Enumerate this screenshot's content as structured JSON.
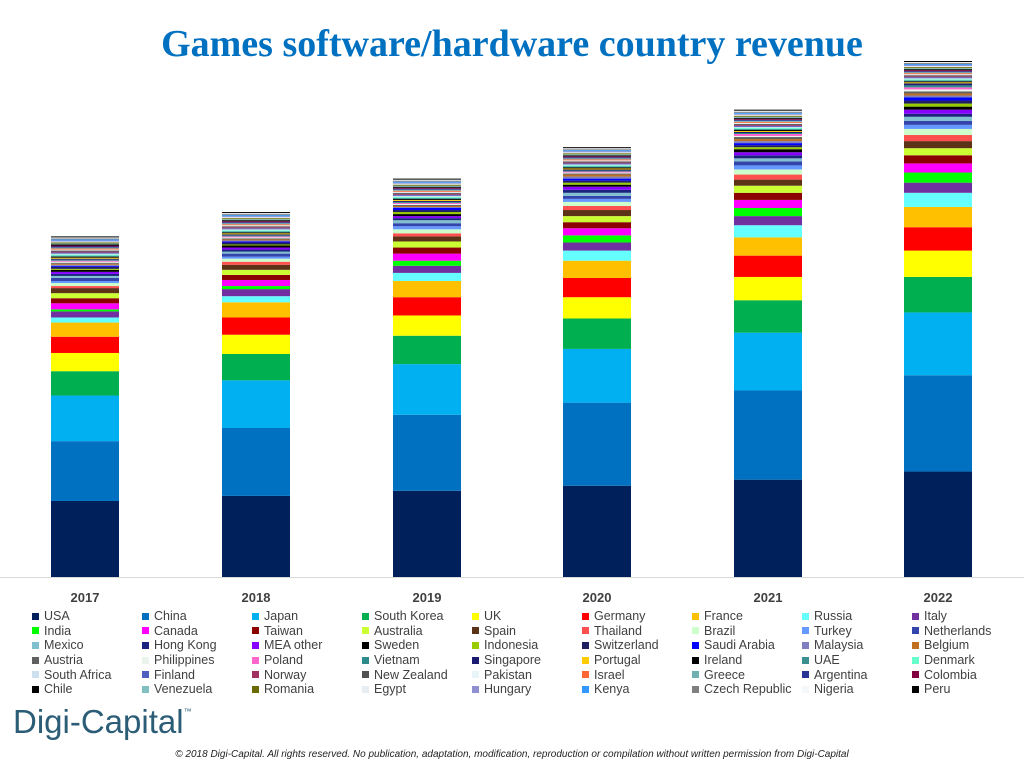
{
  "chart_data": {
    "type": "bar",
    "stacked": true,
    "title": "Games software/hardware country revenue",
    "xlabel": "",
    "ylabel": "",
    "units": "relative revenue (no axis shown)",
    "ylim": [
      0,
      510
    ],
    "categories": [
      "2017",
      "2018",
      "2019",
      "2020",
      "2021",
      "2022"
    ],
    "legend_position": "bottom",
    "series": [
      {
        "name": "USA",
        "color": "#00205b",
        "values": [
          75,
          80,
          85,
          90,
          96,
          104
        ]
      },
      {
        "name": "China",
        "color": "#0070c0",
        "values": [
          59,
          67,
          75,
          82,
          88,
          95
        ]
      },
      {
        "name": "Japan",
        "color": "#00b0f0",
        "values": [
          45,
          47,
          50,
          53,
          57,
          62
        ]
      },
      {
        "name": "South Korea",
        "color": "#00b050",
        "values": [
          24,
          26,
          28,
          30,
          32,
          35
        ]
      },
      {
        "name": "UK",
        "color": "#ffff00",
        "values": [
          18,
          19,
          20,
          21,
          23,
          26
        ]
      },
      {
        "name": "Germany",
        "color": "#ff0000",
        "values": [
          16,
          17,
          18,
          19,
          21,
          23
        ]
      },
      {
        "name": "France",
        "color": "#ffc000",
        "values": [
          14,
          15,
          16,
          17,
          18,
          20
        ]
      },
      {
        "name": "Russia",
        "color": "#66ffff",
        "values": [
          5,
          6,
          8,
          10,
          12,
          14
        ]
      },
      {
        "name": "Italy",
        "color": "#7030a0",
        "values": [
          6,
          7,
          7,
          8,
          9,
          10
        ]
      },
      {
        "name": "India",
        "color": "#00ff00",
        "values": [
          2,
          3,
          5,
          7,
          8,
          10
        ]
      },
      {
        "name": "Canada",
        "color": "#ff00ff",
        "values": [
          6,
          6,
          7,
          7,
          8,
          9
        ]
      },
      {
        "name": "Taiwan",
        "color": "#8b0000",
        "values": [
          5,
          5,
          6,
          6,
          7,
          8
        ]
      },
      {
        "name": "Australia",
        "color": "#ccff33",
        "values": [
          5,
          5,
          6,
          6,
          7,
          7
        ]
      },
      {
        "name": "Spain",
        "color": "#5c3317",
        "values": [
          5,
          5,
          5,
          6,
          6,
          7
        ]
      },
      {
        "name": "Thailand",
        "color": "#ff5050",
        "values": [
          2,
          3,
          3,
          4,
          5,
          6
        ]
      },
      {
        "name": "Brazil",
        "color": "#ccffcc",
        "values": [
          3,
          3,
          4,
          4,
          5,
          6
        ]
      },
      {
        "name": "Turkey",
        "color": "#6699ff",
        "values": [
          2,
          2,
          3,
          3,
          4,
          4
        ]
      },
      {
        "name": "Netherlands",
        "color": "#3344aa",
        "values": [
          3,
          3,
          3,
          3,
          4,
          4
        ]
      },
      {
        "name": "Mexico",
        "color": "#80c0d0",
        "values": [
          2,
          2,
          3,
          3,
          3,
          4
        ]
      },
      {
        "name": "Hong Kong",
        "color": "#1a237e",
        "values": [
          2,
          2,
          2,
          3,
          3,
          3
        ]
      },
      {
        "name": "MEA other",
        "color": "#8800ff",
        "values": [
          2,
          2,
          2,
          3,
          3,
          4
        ]
      },
      {
        "name": "Sweden",
        "color": "#000000",
        "values": [
          2,
          2,
          2,
          2,
          3,
          3
        ]
      },
      {
        "name": "Indonesia",
        "color": "#99cc00",
        "values": [
          1,
          1,
          2,
          2,
          2,
          3
        ]
      },
      {
        "name": "Switzerland",
        "color": "#202060",
        "values": [
          2,
          2,
          2,
          2,
          2,
          3
        ]
      },
      {
        "name": "Saudi Arabia",
        "color": "#0000ff",
        "values": [
          1,
          1,
          2,
          2,
          2,
          3
        ]
      },
      {
        "name": "Malaysia",
        "color": "#8080c0",
        "values": [
          1,
          1,
          1,
          2,
          2,
          2
        ]
      },
      {
        "name": "Belgium",
        "color": "#c07020",
        "values": [
          1,
          1,
          1,
          2,
          2,
          2
        ]
      },
      {
        "name": "Austria",
        "color": "#606060",
        "values": [
          1,
          1,
          1,
          1,
          2,
          2
        ]
      },
      {
        "name": "Philippines",
        "color": "#eaf4ec",
        "values": [
          1,
          1,
          1,
          1,
          1,
          2
        ]
      },
      {
        "name": "Poland",
        "color": "#ff66cc",
        "values": [
          1,
          1,
          1,
          1,
          2,
          2
        ]
      },
      {
        "name": "Vietnam",
        "color": "#2e8b8b",
        "values": [
          1,
          1,
          1,
          1,
          1,
          2
        ]
      },
      {
        "name": "Singapore",
        "color": "#191970",
        "values": [
          1,
          1,
          1,
          1,
          1,
          2
        ]
      },
      {
        "name": "Portugal",
        "color": "#ffcc00",
        "values": [
          1,
          1,
          1,
          1,
          1,
          1
        ]
      },
      {
        "name": "Ireland",
        "color": "#000000",
        "values": [
          1,
          1,
          1,
          1,
          1,
          1
        ]
      },
      {
        "name": "UAE",
        "color": "#3a9090",
        "values": [
          1,
          1,
          1,
          1,
          1,
          1
        ]
      },
      {
        "name": "Denmark",
        "color": "#66ffcc",
        "values": [
          1,
          1,
          1,
          1,
          1,
          1
        ]
      },
      {
        "name": "South Africa",
        "color": "#cce0ee",
        "values": [
          1,
          1,
          1,
          1,
          1,
          1
        ]
      },
      {
        "name": "Finland",
        "color": "#5060c0",
        "values": [
          1,
          1,
          1,
          1,
          1,
          1
        ]
      },
      {
        "name": "Norway",
        "color": "#a03060",
        "values": [
          1,
          1,
          1,
          1,
          1,
          1
        ]
      },
      {
        "name": "New Zealand",
        "color": "#505050",
        "values": [
          1,
          1,
          1,
          1,
          1,
          1
        ]
      },
      {
        "name": "Pakistan",
        "color": "#e8f4f8",
        "values": [
          1,
          1,
          1,
          1,
          1,
          1
        ]
      },
      {
        "name": "Israel",
        "color": "#ff6633",
        "values": [
          1,
          1,
          1,
          1,
          1,
          1
        ]
      },
      {
        "name": "Greece",
        "color": "#70b0b0",
        "values": [
          1,
          1,
          1,
          1,
          1,
          1
        ]
      },
      {
        "name": "Argentina",
        "color": "#283593",
        "values": [
          1,
          1,
          1,
          1,
          1,
          1
        ]
      },
      {
        "name": "Colombia",
        "color": "#800040",
        "values": [
          1,
          1,
          1,
          1,
          1,
          1
        ]
      },
      {
        "name": "Chile",
        "color": "#000000",
        "values": [
          1,
          1,
          1,
          1,
          1,
          1
        ]
      },
      {
        "name": "Venezuela",
        "color": "#80c0c0",
        "values": [
          1,
          1,
          1,
          1,
          1,
          1
        ]
      },
      {
        "name": "Romania",
        "color": "#6b6b00",
        "values": [
          1,
          1,
          1,
          1,
          1,
          1
        ]
      },
      {
        "name": "Egypt",
        "color": "#e6eef4",
        "values": [
          1,
          1,
          1,
          1,
          1,
          1
        ]
      },
      {
        "name": "Hungary",
        "color": "#9090d0",
        "values": [
          1,
          1,
          1,
          1,
          1,
          1
        ]
      },
      {
        "name": "Kenya",
        "color": "#3399ff",
        "values": [
          1,
          1,
          1,
          1,
          1,
          1
        ]
      },
      {
        "name": "Czech Republic",
        "color": "#808080",
        "values": [
          1,
          1,
          1,
          1,
          1,
          1
        ]
      },
      {
        "name": "Nigeria",
        "color": "#f4f8fa",
        "values": [
          1,
          1,
          1,
          1,
          1,
          1
        ]
      },
      {
        "name": "Peru",
        "color": "#000000",
        "values": [
          1,
          1,
          1,
          1,
          1,
          1
        ]
      }
    ]
  },
  "logo": {
    "text": "Digi-Capital",
    "tm": "™"
  },
  "copyright": "© 2018 Digi-Capital. All rights reserved. No publication, adaptation, modification, reproduction or compilation without written permission from Digi-Capital"
}
